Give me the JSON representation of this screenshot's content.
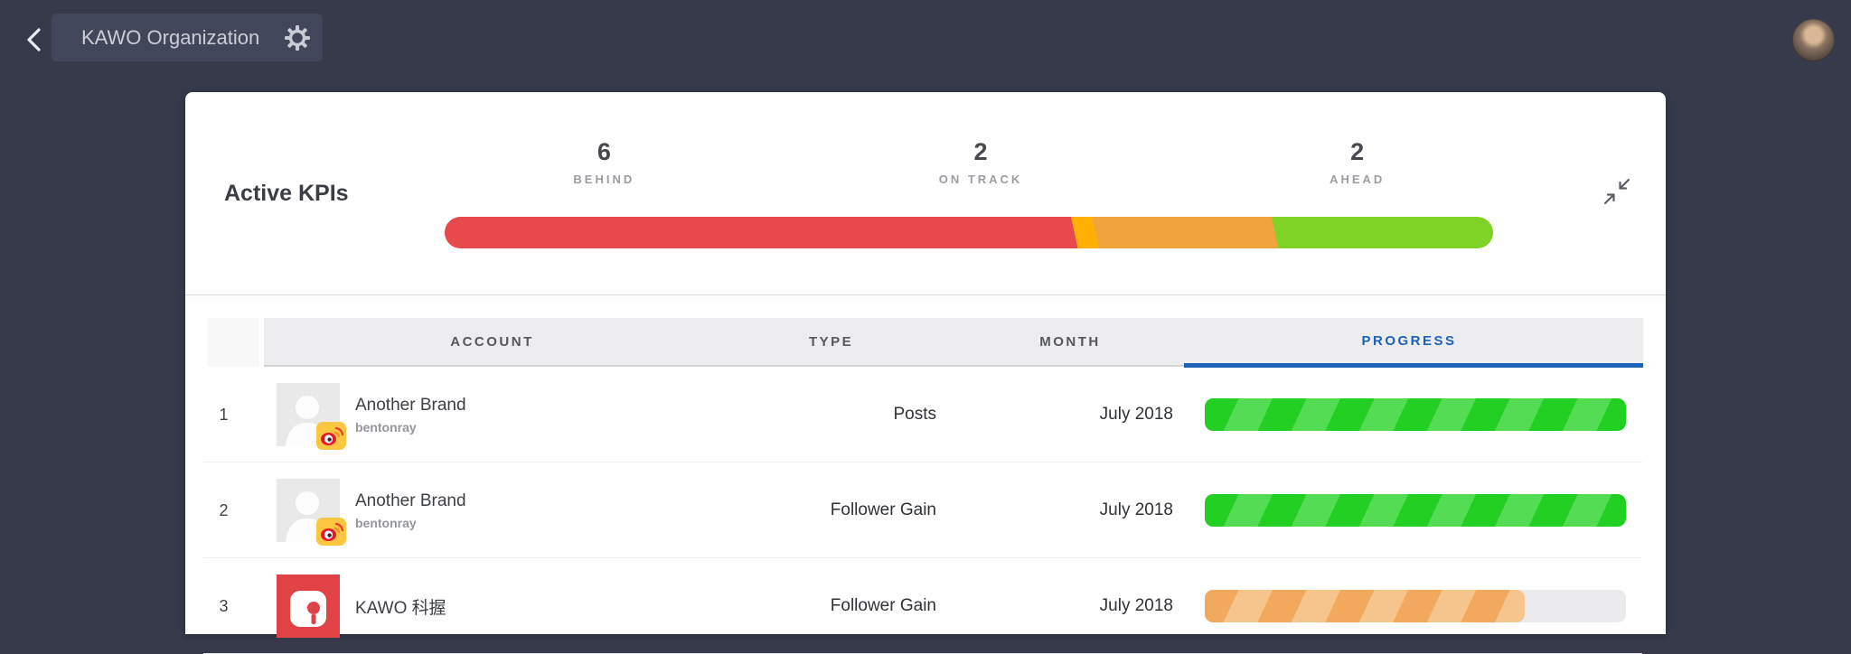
{
  "topbar": {
    "org_name": "KAWO Organization",
    "back_icon": "chevron-left",
    "settings_icon": "gear",
    "user_avatar": "profile-photo"
  },
  "kpi_summary": {
    "title": "Active KPIs",
    "stats": [
      {
        "value": "6",
        "label": "BEHIND",
        "color": "#e8494c"
      },
      {
        "value": "2",
        "label": "ON TRACK",
        "color": "#f0a43c"
      },
      {
        "value": "2",
        "label": "AHEAD",
        "color": "#7fd327"
      }
    ],
    "bar_segments": [
      {
        "label": "behind",
        "percent": 60,
        "color": "#e8494c"
      },
      {
        "label": "transition",
        "percent": 2,
        "color": "#ffb000"
      },
      {
        "label": "on-track",
        "percent": 17,
        "color": "#f0a43c"
      },
      {
        "label": "ahead",
        "percent": 21,
        "color": "#7fd327"
      }
    ],
    "collapse_icon": "collapse-arrows"
  },
  "table": {
    "headers": {
      "account": "ACCOUNT",
      "type": "TYPE",
      "month": "MONTH",
      "progress": "PROGRESS"
    },
    "active_header": "PROGRESS",
    "rows": [
      {
        "index": "1",
        "name": "Another Brand",
        "handle": "bentonray",
        "network": "weibo",
        "type": "Posts",
        "month": "July 2018",
        "progress": {
          "percent": 100,
          "status": "green"
        }
      },
      {
        "index": "2",
        "name": "Another Brand",
        "handle": "bentonray",
        "network": "weibo",
        "type": "Follower Gain",
        "month": "July 2018",
        "progress": {
          "percent": 100,
          "status": "green"
        }
      },
      {
        "index": "3",
        "name": "KAWO 科握",
        "type": "Follower Gain",
        "month": "July 2018",
        "progress": {
          "percent": 76,
          "status": "orange"
        }
      }
    ]
  },
  "colors": {
    "page-bg": "#363a4b",
    "topbar-box": "#42465a",
    "card": "#ffffff",
    "accent-blue": "#1b62b8",
    "red": "#e8494c",
    "orange": "#f0a43c",
    "green": "#7fd327",
    "green-base": "#22cf22",
    "green-stripe": "#55dc55",
    "orange-base": "#f2a95d",
    "orange-stripe": "#f6c58e",
    "track": "#ebebed"
  }
}
